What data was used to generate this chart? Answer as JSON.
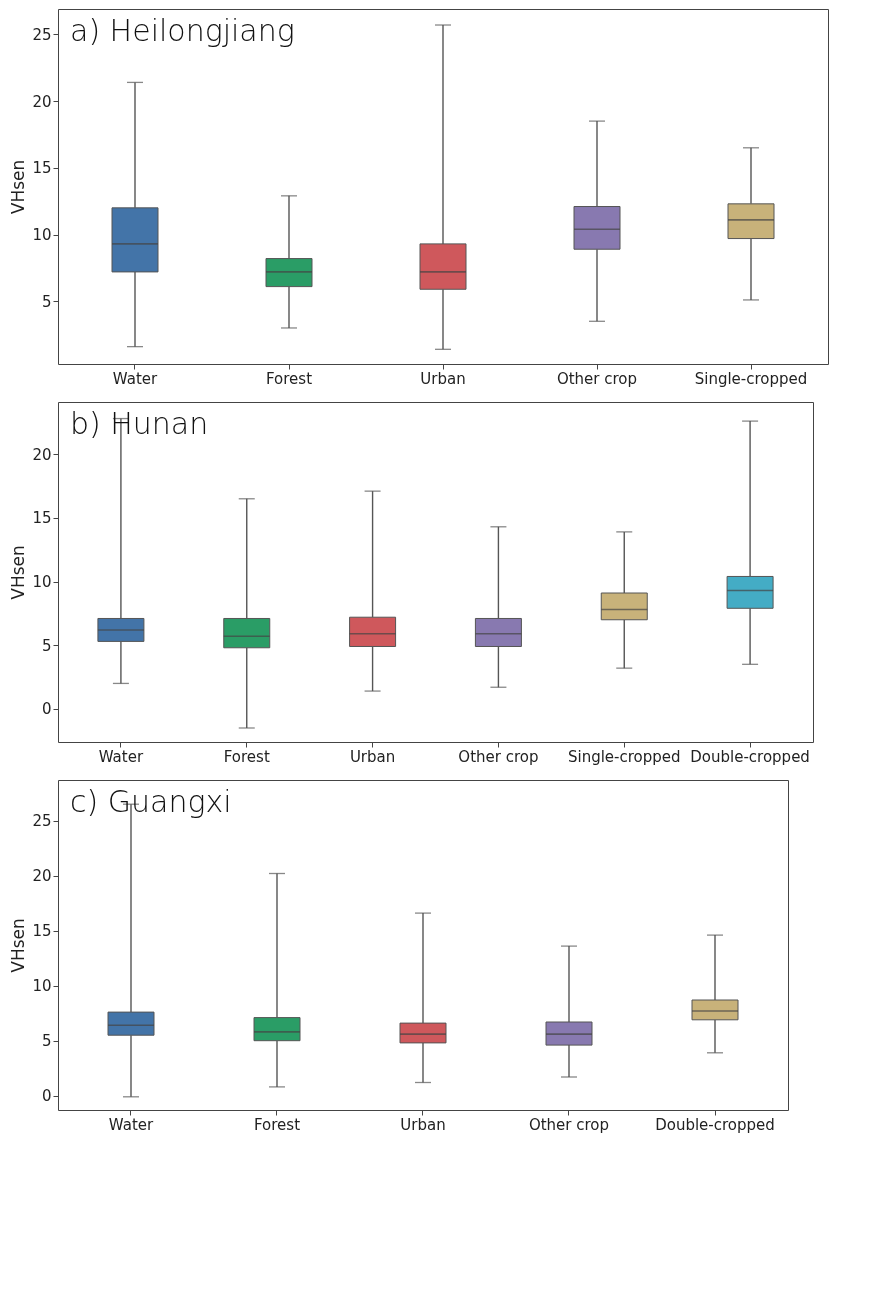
{
  "chart_data": [
    {
      "type": "box",
      "title": "a) Heilongjiang",
      "ylabel": "VHsen",
      "categories": [
        "Water",
        "Forest",
        "Urban",
        "Other crop",
        "Single-cropped"
      ],
      "colors": [
        "#4374a8",
        "#2a9d66",
        "#cf585c",
        "#8879b0",
        "#c8b27a"
      ],
      "ylim": [
        0.3,
        26.9
      ],
      "yticks": [
        5,
        10,
        15,
        20,
        25
      ],
      "grid": false,
      "boxes": [
        {
          "low": 1.6,
          "q1": 7.2,
          "median": 9.3,
          "q3": 12.0,
          "high": 21.4
        },
        {
          "low": 3.0,
          "q1": 6.1,
          "median": 7.2,
          "q3": 8.2,
          "high": 12.9
        },
        {
          "low": 1.4,
          "q1": 5.9,
          "median": 7.2,
          "q3": 9.3,
          "high": 25.7
        },
        {
          "low": 3.5,
          "q1": 8.9,
          "median": 10.4,
          "q3": 12.1,
          "high": 18.5
        },
        {
          "low": 5.1,
          "q1": 9.7,
          "median": 11.1,
          "q3": 12.3,
          "high": 16.5
        }
      ]
    },
    {
      "type": "box",
      "title": "b) Hunan",
      "ylabel": "VHsen",
      "categories": [
        "Water",
        "Forest",
        "Urban",
        "Other crop",
        "Single-cropped",
        "Double-cropped"
      ],
      "colors": [
        "#4374a8",
        "#2a9d66",
        "#cf585c",
        "#8879b0",
        "#c8b27a",
        "#44acc5"
      ],
      "ylim": [
        -2.6,
        24.1
      ],
      "yticks": [
        0,
        5,
        10,
        15,
        20
      ],
      "grid": false,
      "boxes": [
        {
          "low": 2.0,
          "q1": 5.3,
          "median": 6.2,
          "q3": 7.1,
          "high": 22.8
        },
        {
          "low": -1.5,
          "q1": 4.8,
          "median": 5.7,
          "q3": 7.1,
          "high": 16.5
        },
        {
          "low": 1.4,
          "q1": 4.9,
          "median": 5.9,
          "q3": 7.2,
          "high": 17.1
        },
        {
          "low": 1.7,
          "q1": 4.9,
          "median": 5.9,
          "q3": 7.1,
          "high": 14.3
        },
        {
          "low": 3.2,
          "q1": 7.0,
          "median": 7.8,
          "q3": 9.1,
          "high": 13.9
        },
        {
          "low": 3.5,
          "q1": 7.9,
          "median": 9.3,
          "q3": 10.4,
          "high": 22.6
        }
      ]
    },
    {
      "type": "box",
      "title": "c) Guangxi",
      "ylabel": "VHsen",
      "categories": [
        "Water",
        "Forest",
        "Urban",
        "Other crop",
        "Double-cropped"
      ],
      "colors": [
        "#4374a8",
        "#2a9d66",
        "#cf585c",
        "#8879b0",
        "#c8b27a"
      ],
      "ylim": [
        -1.3,
        28.7
      ],
      "yticks": [
        0,
        5,
        10,
        15,
        20,
        25
      ],
      "grid": false,
      "boxes": [
        {
          "low": -0.1,
          "q1": 5.5,
          "median": 6.4,
          "q3": 7.6,
          "high": 26.5
        },
        {
          "low": 0.8,
          "q1": 5.0,
          "median": 5.8,
          "q3": 7.1,
          "high": 20.2
        },
        {
          "low": 1.2,
          "q1": 4.8,
          "median": 5.6,
          "q3": 6.6,
          "high": 16.6
        },
        {
          "low": 1.7,
          "q1": 4.6,
          "median": 5.6,
          "q3": 6.7,
          "high": 13.6
        },
        {
          "low": 3.9,
          "q1": 6.9,
          "median": 7.7,
          "q3": 8.7,
          "high": 14.6
        }
      ]
    }
  ]
}
